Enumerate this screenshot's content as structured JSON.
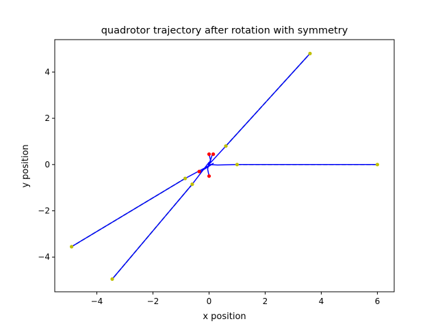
{
  "chart_data": {
    "type": "line",
    "title": "quadrotor trajectory after rotation with symmetry",
    "xlabel": "x position",
    "ylabel": "y position",
    "xlim": [
      -5.5,
      6.6
    ],
    "ylim": [
      -5.5,
      5.4
    ],
    "xticks": [
      -4,
      -2,
      0,
      2,
      4,
      6
    ],
    "yticks": [
      -4,
      -2,
      0,
      2,
      4
    ],
    "xtick_labels": [
      "−4",
      "−2",
      "0",
      "2",
      "4",
      "6"
    ],
    "ytick_labels": [
      "−4",
      "−2",
      "0",
      "2",
      "4"
    ],
    "grid": false,
    "colors": {
      "trajectory": "#0000ff",
      "reference": "#008000",
      "waypoint": "#bfbf00",
      "start": "#ff0000"
    },
    "series": [
      {
        "role": "reference",
        "style": "dashed",
        "paths": [
          [
            [
              1.0,
              0.0
            ],
            [
              6.0,
              0.0
            ]
          ],
          [
            [
              0.6,
              0.8
            ],
            [
              3.6,
              4.8
            ]
          ],
          [
            [
              -0.85,
              -0.6
            ],
            [
              -4.9,
              -3.55
            ]
          ],
          [
            [
              -0.6,
              -0.85
            ],
            [
              -3.45,
              -4.95
            ]
          ]
        ]
      },
      {
        "role": "trajectory",
        "style": "solid",
        "paths": [
          [
            [
              0.0,
              0.45
            ],
            [
              0.05,
              0.2
            ],
            [
              0.0,
              0.0
            ],
            [
              0.3,
              -0.02
            ],
            [
              1.0,
              0.0
            ],
            [
              6.0,
              0.0
            ]
          ],
          [
            [
              0.12,
              0.45
            ],
            [
              0.07,
              0.25
            ],
            [
              0.03,
              0.05
            ],
            [
              0.6,
              0.8
            ],
            [
              3.6,
              4.8
            ]
          ],
          [
            [
              -0.3,
              -0.3
            ],
            [
              -0.1,
              -0.15
            ],
            [
              0.15,
              0.05
            ],
            [
              -0.85,
              -0.6
            ],
            [
              -4.9,
              -3.55
            ]
          ],
          [
            [
              0.0,
              -0.5
            ],
            [
              -0.05,
              -0.2
            ],
            [
              0.0,
              0.1
            ],
            [
              -0.6,
              -0.85
            ],
            [
              -3.45,
              -4.95
            ]
          ]
        ]
      }
    ],
    "waypoints": [
      [
        1.0,
        0.0
      ],
      [
        6.0,
        0.0
      ],
      [
        0.6,
        0.8
      ],
      [
        3.6,
        4.8
      ],
      [
        -0.85,
        -0.6
      ],
      [
        -4.9,
        -3.55
      ],
      [
        -0.6,
        -0.85
      ],
      [
        -3.45,
        -4.95
      ]
    ],
    "start_points": [
      [
        0.0,
        0.45
      ],
      [
        0.15,
        0.45
      ],
      [
        0.0,
        -0.5
      ],
      [
        -0.35,
        -0.3
      ]
    ]
  }
}
